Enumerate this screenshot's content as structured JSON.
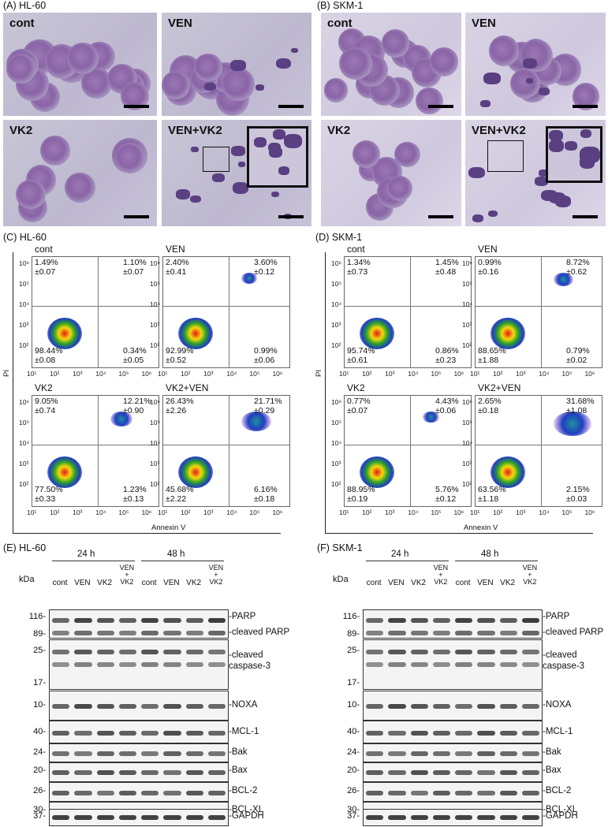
{
  "panels": {
    "A": "(A) HL-60",
    "B": "(B) SKM-1",
    "C": "(C) HL-60",
    "D": "(D) SKM-1",
    "E": "(E) HL-60",
    "F": "(F) SKM-1"
  },
  "micrographs": {
    "labels": [
      "cont",
      "VEN",
      "VK2",
      "VEN+VK2"
    ]
  },
  "flow": {
    "y_axis": "PI",
    "x_axis": "Annexin V",
    "ticks": [
      "10¹",
      "10²",
      "10³",
      "10⁴",
      "10⁵",
      "10⁶"
    ],
    "hl60": [
      {
        "label": "cont",
        "ul": [
          "1.49%",
          "±0.07"
        ],
        "ur": [
          "1.10%",
          "±0.07"
        ],
        "ll": [
          "98.44%",
          "±0.08"
        ],
        "lr": [
          "0.34%",
          "±0.05"
        ]
      },
      {
        "label": "VEN",
        "ul": [
          "2.40%",
          "±0.41"
        ],
        "ur": [
          "3.60%",
          "±0.12"
        ],
        "ll": [
          "92.99%",
          "±0.52"
        ],
        "lr": [
          "0.99%",
          "±0.06"
        ]
      },
      {
        "label": "VK2",
        "ul": [
          "9.05%",
          "±0.74"
        ],
        "ur": [
          "12.21%",
          "±0.90"
        ],
        "ll": [
          "77.50%",
          "±0.33"
        ],
        "lr": [
          "1.23%",
          "±0.13"
        ]
      },
      {
        "label": "VK2+VEN",
        "ul": [
          "26.43%",
          "±2.26"
        ],
        "ur": [
          "21.71%",
          "±0.29"
        ],
        "ll": [
          "45.68%",
          "±2.22"
        ],
        "lr": [
          "6.16%",
          "±0.18"
        ]
      }
    ],
    "skm1": [
      {
        "label": "cont",
        "ul": [
          "1.34%",
          "±0.73"
        ],
        "ur": [
          "1.45%",
          "±0.48"
        ],
        "ll": [
          "95.74%",
          "±0.61"
        ],
        "lr": [
          "0.86%",
          "±0.23"
        ]
      },
      {
        "label": "VEN",
        "ul": [
          "0.99%",
          "±0.16"
        ],
        "ur": [
          "8.72%",
          "±0.62"
        ],
        "ll": [
          "88.65%",
          "±1.88"
        ],
        "lr": [
          "0.79%",
          "±0.02"
        ]
      },
      {
        "label": "VK2",
        "ul": [
          "0.77%",
          "±0.07"
        ],
        "ur": [
          "4.43%",
          "±0.06"
        ],
        "ll": [
          "88.95%",
          "±0.19"
        ],
        "lr": [
          "5.76%",
          "±0.12"
        ]
      },
      {
        "label": "VK2+VEN",
        "ul": [
          "2.65%",
          "±0.18"
        ],
        "ur": [
          "31.68%",
          "±1.08"
        ],
        "ll": [
          "63.56%",
          "±1.18"
        ],
        "lr": [
          "2.15%",
          "±0.03"
        ]
      }
    ]
  },
  "blot": {
    "kda": "kDa",
    "t24": "24 h",
    "t48": "48 h",
    "lanes": [
      "cont",
      "VEN",
      "VK2",
      "VEN\n+\nVK2",
      "cont",
      "VEN",
      "VK2",
      "VEN\n+\nVK2"
    ],
    "markers": [
      "116-",
      "89-",
      "25-",
      "17-",
      "10-",
      "40-",
      "24-",
      "20-",
      "26-",
      "30-",
      "37-"
    ],
    "proteins": [
      "-PARP",
      "-cleaved PARP",
      "-cleaved",
      "caspase-3",
      "-NOXA",
      "-MCL-1",
      "-Bak",
      "-Bax",
      "-BCL-2",
      "-BCL-XL",
      "-GAPDH"
    ]
  }
}
